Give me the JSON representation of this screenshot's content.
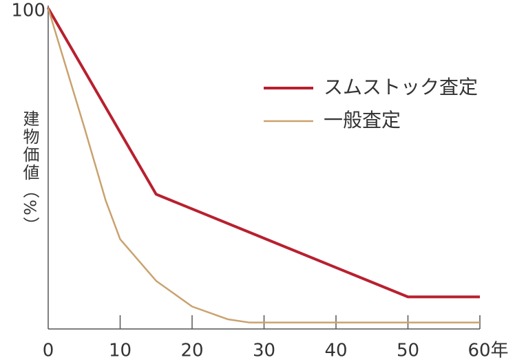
{
  "chart_data": {
    "type": "line",
    "y_label": "建物価値（%）",
    "xlim": [
      0,
      60
    ],
    "xticks": [
      0,
      10,
      20,
      30,
      40,
      50,
      {
        "value": 60,
        "label": "60年"
      }
    ],
    "ylim": [
      0,
      100
    ],
    "yticks": [
      100
    ],
    "series": [
      {
        "name": "スムストック査定",
        "color": "#b8202f",
        "x": [
          0,
          15,
          50,
          60
        ],
        "values": [
          100,
          42,
          10,
          10
        ]
      },
      {
        "name": "一般査定",
        "color": "#c9a26e",
        "x": [
          0,
          5,
          8,
          10,
          15,
          20,
          25,
          28,
          60
        ],
        "values": [
          100,
          63,
          40,
          28,
          15,
          7,
          3,
          2,
          2
        ]
      }
    ]
  }
}
